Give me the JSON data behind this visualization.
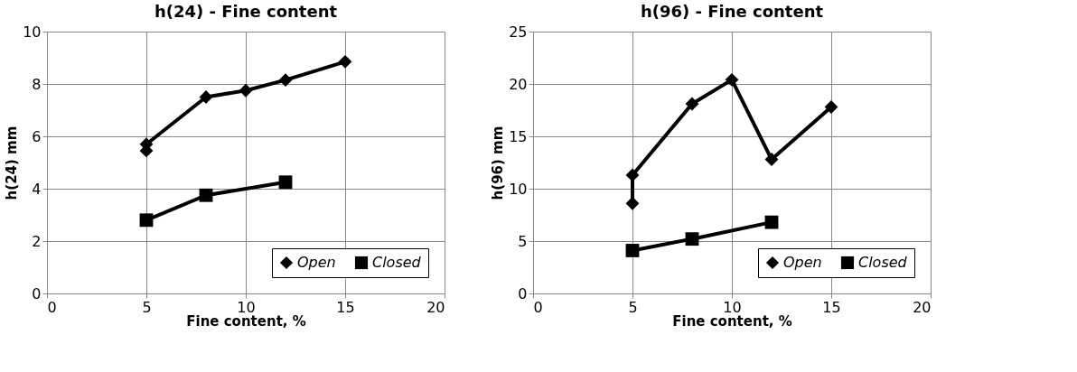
{
  "chart_data": [
    {
      "type": "line",
      "title": "h(24) - Fine content",
      "xlabel": "Fine content, %",
      "ylabel": "h(24) mm",
      "xlim": [
        0,
        20
      ],
      "xticks": [
        0,
        5,
        10,
        15,
        20
      ],
      "ylim": [
        0,
        10
      ],
      "yticks": [
        0,
        2,
        4,
        6,
        8,
        10
      ],
      "grid": true,
      "legend": "bottom right",
      "line_style": "solid",
      "series": [
        {
          "name": "Open",
          "color": "#000000",
          "marker": "diamond",
          "x": [
            5,
            5,
            8,
            10,
            12,
            15
          ],
          "values": [
            5.45,
            5.7,
            7.5,
            7.75,
            8.15,
            8.85
          ]
        },
        {
          "name": "Closed",
          "color": "#000000",
          "marker": "square",
          "x": [
            5,
            8,
            12
          ],
          "values": [
            2.8,
            3.75,
            4.25
          ]
        }
      ]
    },
    {
      "type": "line",
      "title": "h(96) - Fine content",
      "xlabel": "Fine content, %",
      "ylabel": "h(96) mm",
      "xlim": [
        0,
        20
      ],
      "xticks": [
        0,
        5,
        10,
        15,
        20
      ],
      "ylim": [
        0,
        25
      ],
      "yticks": [
        0,
        5,
        10,
        15,
        20,
        25
      ],
      "grid": true,
      "legend": "bottom right",
      "line_style": "solid",
      "series": [
        {
          "name": "Open",
          "color": "#000000",
          "marker": "diamond",
          "x": [
            5,
            5,
            8,
            10,
            12,
            15
          ],
          "values": [
            8.6,
            11.3,
            18.1,
            20.4,
            12.8,
            17.8
          ]
        },
        {
          "name": "Closed",
          "color": "#000000",
          "marker": "square",
          "x": [
            5,
            8,
            12
          ],
          "values": [
            4.1,
            5.2,
            6.8
          ]
        }
      ]
    }
  ]
}
